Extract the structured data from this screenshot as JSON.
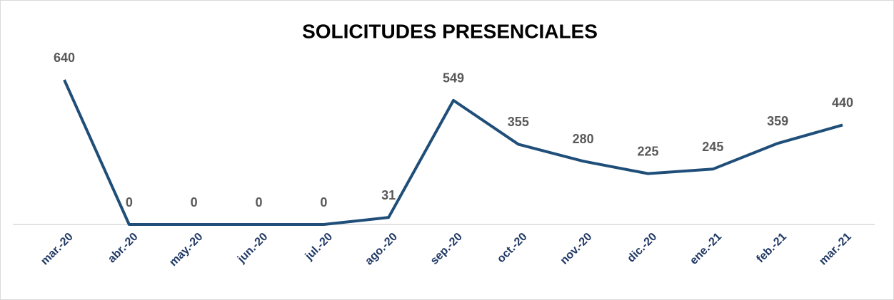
{
  "chart_data": {
    "type": "line",
    "title": "SOLICITUDES PRESENCIALES",
    "categories": [
      "mar.-20",
      "abr.-20",
      "may.-20",
      "jun.-20",
      "jul.-20",
      "ago.-20",
      "sep.-20",
      "oct.-20",
      "nov.-20",
      "dic.-20",
      "ene.-21",
      "feb.-21",
      "mar.-21"
    ],
    "series": [
      {
        "name": "Solicitudes presenciales",
        "color": "#1f4e79",
        "values": [
          640,
          0,
          0,
          0,
          0,
          31,
          549,
          355,
          280,
          225,
          245,
          359,
          440
        ]
      }
    ],
    "ylim": [
      0,
      700
    ],
    "data_labels": true
  }
}
